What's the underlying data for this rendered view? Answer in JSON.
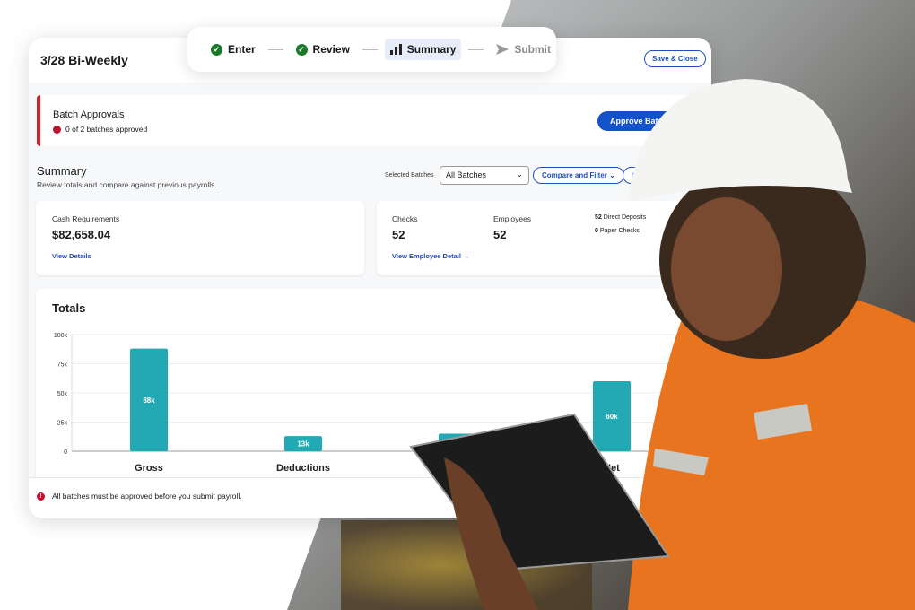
{
  "header": {
    "title": "3/28 Bi-Weekly",
    "save_close": "Save & Close"
  },
  "stepper": [
    {
      "label": "Enter",
      "state": "done",
      "icon": "check-circle-icon"
    },
    {
      "label": "Review",
      "state": "done",
      "icon": "check-circle-icon"
    },
    {
      "label": "Summary",
      "state": "active",
      "icon": "bar-chart-icon"
    },
    {
      "label": "Submit",
      "state": "pending",
      "icon": "send-arrow-icon"
    }
  ],
  "approvals": {
    "title": "Batch Approvals",
    "status": "0 of 2 batches approved",
    "button": "Approve Batches"
  },
  "summary": {
    "title": "Summary",
    "subtitle": "Review totals and compare against previous payrolls.",
    "selected_label": "Selected Batches",
    "selected_value": "All Batches",
    "compare": "Compare and Filter",
    "run": "Run"
  },
  "cash": {
    "label": "Cash Requirements",
    "value": "$82,658.04",
    "link": "View Details"
  },
  "counts": {
    "checks_label": "Checks",
    "checks": "52",
    "employees_label": "Employees",
    "employees": "52",
    "direct_deposits_count": "52",
    "direct_deposits_label": "Direct Deposits",
    "paper_count": "0",
    "paper_label": "Paper Checks",
    "link": "View Employee Detail →"
  },
  "totals_title": "Totals",
  "chart_data": {
    "type": "bar",
    "categories": [
      "Gross",
      "Deductions",
      "",
      "Net"
    ],
    "values": [
      88000,
      13000,
      15000,
      60000
    ],
    "data_labels": [
      "88k",
      "13k",
      "",
      "60k"
    ],
    "ylim": [
      0,
      100000
    ],
    "yticks": [
      "0",
      "25k",
      "50k",
      "75k",
      "100k"
    ],
    "grid": true,
    "color": "#22a9b4"
  },
  "footer": {
    "message": "All batches must be approved before you submit payroll."
  },
  "colors": {
    "accent": "#1452cc",
    "error": "#c8102e",
    "success": "#1a7a2a",
    "bar": "#22a9b4"
  }
}
